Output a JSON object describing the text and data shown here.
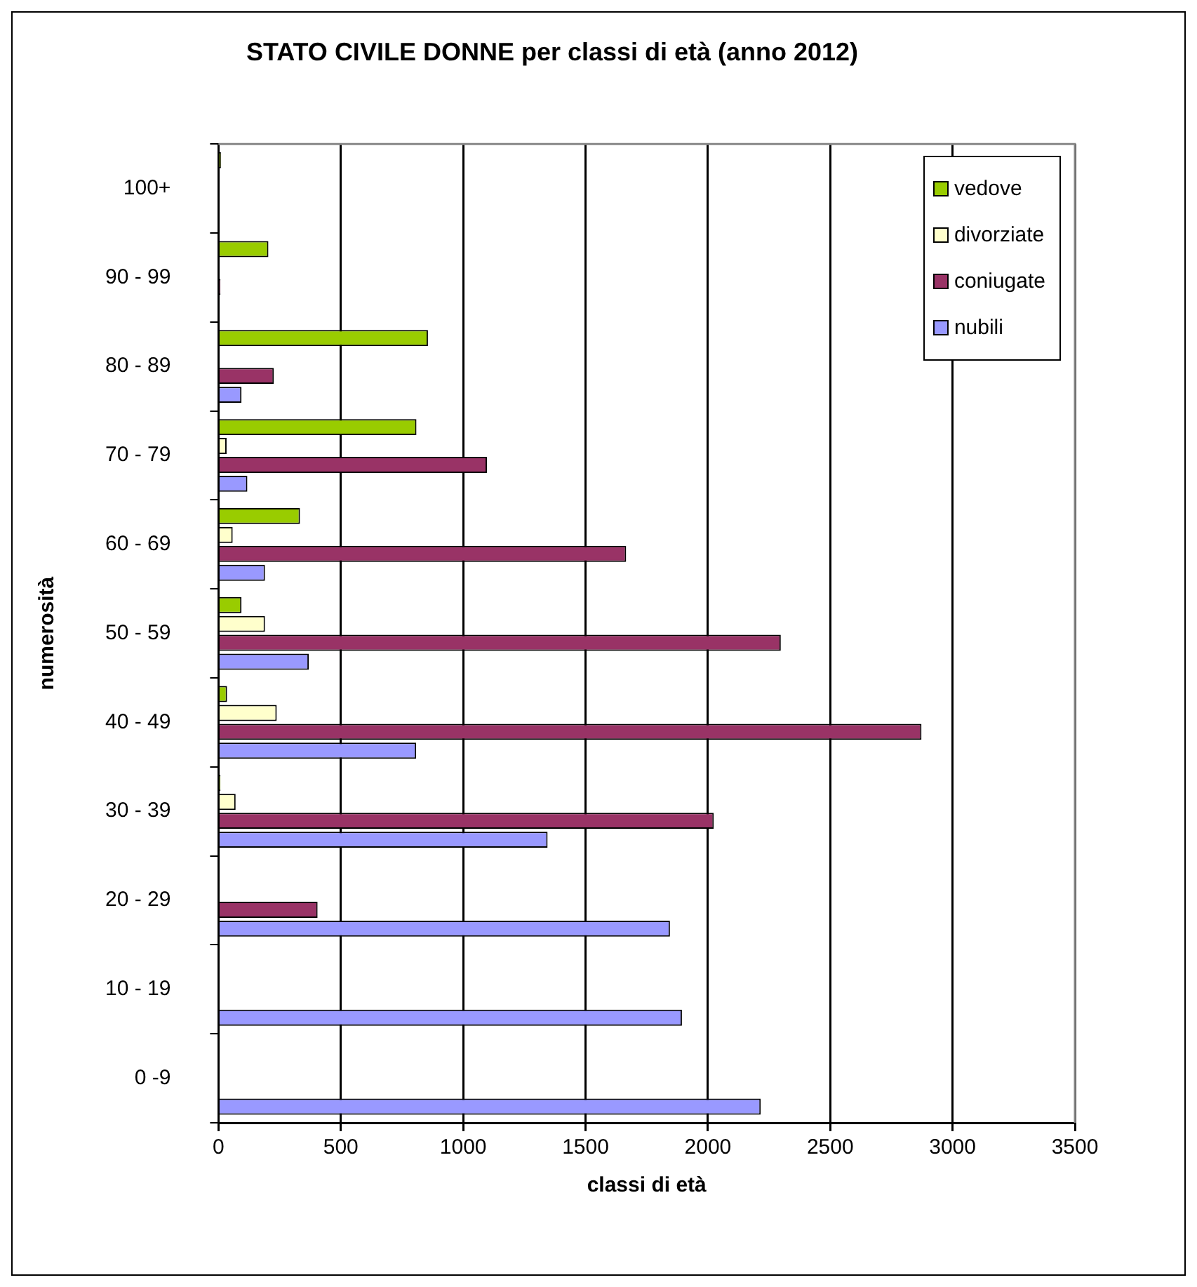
{
  "chart_data": {
    "type": "bar",
    "orientation": "horizontal",
    "title": "STATO CIVILE DONNE per classi di età (anno 2012)",
    "xlabel": "classi di età",
    "ylabel": "numerosità",
    "categories": [
      "100+",
      "90 - 99",
      "80 - 89",
      "70 - 79",
      "60 - 69",
      "50 - 59",
      "40 - 49",
      "30 - 39",
      "20 - 29",
      "10 - 19",
      "0 -9"
    ],
    "series": [
      {
        "name": "vedove",
        "color": "#99cc00",
        "values": [
          10,
          204,
          856,
          809,
          333,
          94,
          35,
          8,
          null,
          0,
          0
        ]
      },
      {
        "name": "divorziate",
        "color": "#ffffcc",
        "values": [
          0,
          null,
          null,
          33,
          58,
          190,
          238,
          70,
          0,
          0,
          0
        ]
      },
      {
        "name": "coniugate",
        "color": "#993366",
        "values": [
          0,
          8,
          226,
          1097,
          1666,
          2298,
          2873,
          2024,
          405,
          0,
          0
        ]
      },
      {
        "name": "nubili",
        "color": "#9999ff",
        "values": [
          0,
          null,
          94,
          118,
          190,
          369,
          808,
          1345,
          1845,
          1894,
          2216
        ]
      }
    ],
    "xlim": [
      0,
      3500
    ],
    "xticks": [
      0,
      500,
      1000,
      1500,
      2000,
      2500,
      3000,
      3500
    ],
    "grid": "x",
    "legend": "top right"
  }
}
